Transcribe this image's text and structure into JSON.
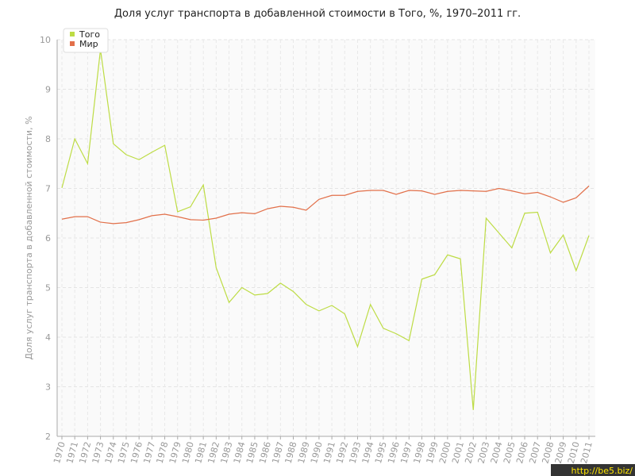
{
  "chart_data": {
    "type": "line",
    "title": "Доля услуг транспорта в добавленной стоимости в Того, %, 1970–2011 гг.",
    "y_label": "Доля услуг транспорта в добавленной стоимости, %",
    "watermark": "http://be5.biz/",
    "categories": [
      "1970",
      "1971",
      "1972",
      "1973",
      "1974",
      "1975",
      "1976",
      "1977",
      "1978",
      "1979",
      "1980",
      "1981",
      "1982",
      "1983",
      "1984",
      "1985",
      "1986",
      "1987",
      "1988",
      "1989",
      "1990",
      "1991",
      "1992",
      "1993",
      "1994",
      "1995",
      "1996",
      "1997",
      "1998",
      "1999",
      "2000",
      "2001",
      "2002",
      "2003",
      "2004",
      "2005",
      "2006",
      "2007",
      "2008",
      "2009",
      "2010",
      "2011"
    ],
    "series": [
      {
        "name": "Того",
        "color": "#bddc44",
        "values": [
          7.01,
          8.0,
          7.5,
          9.8,
          7.9,
          7.68,
          7.58,
          7.73,
          7.87,
          6.53,
          6.63,
          7.07,
          5.4,
          4.7,
          5.0,
          4.85,
          4.88,
          5.09,
          4.92,
          4.66,
          4.53,
          4.64,
          4.47,
          3.81,
          4.66,
          4.18,
          4.07,
          3.93,
          5.17,
          5.26,
          5.66,
          5.58,
          2.53,
          6.4,
          6.1,
          5.8,
          6.5,
          6.52,
          5.7,
          6.06,
          5.34,
          6.05
        ]
      },
      {
        "name": "Мир",
        "color": "#e2704a",
        "values": [
          6.38,
          6.43,
          6.43,
          6.32,
          6.29,
          6.31,
          6.37,
          6.45,
          6.48,
          6.43,
          6.37,
          6.36,
          6.4,
          6.48,
          6.51,
          6.49,
          6.59,
          6.64,
          6.62,
          6.56,
          6.78,
          6.86,
          6.86,
          6.94,
          6.96,
          6.96,
          6.88,
          6.96,
          6.95,
          6.88,
          6.94,
          6.96,
          6.95,
          6.94,
          7.0,
          6.95,
          6.89,
          6.92,
          6.83,
          6.72,
          6.81,
          7.05
        ]
      }
    ],
    "ylim": [
      2,
      10
    ],
    "yticks": [
      2,
      3,
      4,
      5,
      6,
      7,
      8,
      9,
      10
    ],
    "grid": true,
    "legend": "top-left"
  }
}
